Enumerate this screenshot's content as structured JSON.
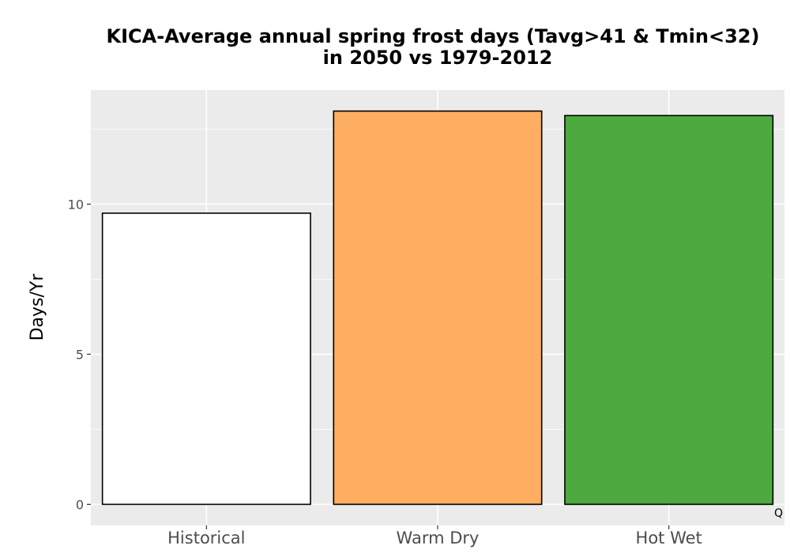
{
  "chart_data": {
    "type": "bar",
    "title_line1": "KICA-Average annual spring frost days (Tavg>41 & Tmin<32)",
    "title_line2": "in 2050 vs 1979-2012",
    "xlabel": "",
    "ylabel": "Days/Yr",
    "categories": [
      "Historical",
      "Warm Dry",
      "Hot Wet"
    ],
    "values": [
      9.7,
      13.1,
      12.95
    ],
    "colors": [
      "#ffffff",
      "#fdae61",
      "#4daa3f"
    ],
    "ylim": [
      -0.7,
      13.8
    ],
    "yticks": [
      0,
      5,
      10
    ],
    "ytick_labels": [
      "0",
      "5",
      "10"
    ],
    "grid": true,
    "corner_note": "Q"
  },
  "colors": {
    "panel_background": "#ebebeb",
    "grid": "#ffffff",
    "bar_outline": "#000000"
  }
}
